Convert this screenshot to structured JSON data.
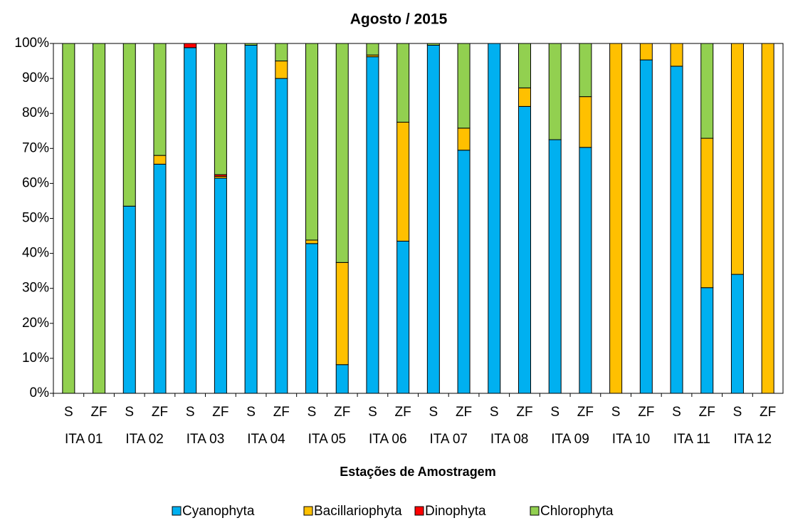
{
  "chart_data": {
    "type": "stacked_bar",
    "title": "Agosto / 2015",
    "x_label": "Estações de Amostragem",
    "categories": [
      "S",
      "ZF",
      "S",
      "ZF",
      "S",
      "ZF",
      "S",
      "ZF",
      "S",
      "ZF",
      "S",
      "ZF",
      "S",
      "ZF",
      "S",
      "ZF",
      "S",
      "ZF",
      "S",
      "ZF",
      "S",
      "ZF",
      "S",
      "ZF"
    ],
    "groups": [
      "ITA 01",
      "ITA 02",
      "ITA 03",
      "ITA 04",
      "ITA 05",
      "ITA 06",
      "ITA 07",
      "ITA 08",
      "ITA 09",
      "ITA 10",
      "ITA 11",
      "ITA 12"
    ],
    "series": [
      {
        "name": "Cyanophyta",
        "color": "#00b0f0",
        "values": [
          0,
          0,
          53.5,
          65.5,
          98.8,
          61.5,
          99.5,
          90,
          42.8,
          8.2,
          96.2,
          43.5,
          99.5,
          69.5,
          100,
          82,
          72.5,
          70.3,
          0,
          95.3,
          93.5,
          30.2,
          34,
          0
        ]
      },
      {
        "name": "Bacillariophyta",
        "color": "#ffc000",
        "values": [
          0,
          0,
          0,
          2.5,
          0,
          0.5,
          0,
          5,
          1,
          29.2,
          0.5,
          34,
          0,
          6.3,
          0,
          5.3,
          0,
          14.5,
          100,
          4.7,
          6.5,
          42.7,
          66,
          100
        ]
      },
      {
        "name": "Dinophyta",
        "color": "#ff0000",
        "values": [
          0,
          0,
          0,
          0,
          1.2,
          0.5,
          0,
          0,
          0,
          0,
          0,
          0,
          0,
          0,
          0,
          0,
          0,
          0,
          0,
          0,
          0,
          0,
          0,
          0
        ]
      },
      {
        "name": "Chlorophyta",
        "color": "#92d050",
        "values": [
          100,
          100,
          46.5,
          32,
          0,
          37.5,
          0.5,
          5,
          56.2,
          62.6,
          3.3,
          22.5,
          0.5,
          24.2,
          0,
          12.7,
          27.5,
          15.2,
          0,
          0,
          0,
          27.1,
          0,
          0
        ]
      }
    ],
    "ylim": [
      0,
      100
    ],
    "yticks": [
      {
        "value": 0,
        "label": "0%"
      },
      {
        "value": 10,
        "label": "10%"
      },
      {
        "value": 20,
        "label": "20%"
      },
      {
        "value": 30,
        "label": "30%"
      },
      {
        "value": 40,
        "label": "40%"
      },
      {
        "value": 50,
        "label": "50%"
      },
      {
        "value": 60,
        "label": "60%"
      },
      {
        "value": 70,
        "label": "70%"
      },
      {
        "value": 80,
        "label": "80%"
      },
      {
        "value": 90,
        "label": "90%"
      },
      {
        "value": 100,
        "label": "100%"
      }
    ],
    "legend": "bottom"
  }
}
